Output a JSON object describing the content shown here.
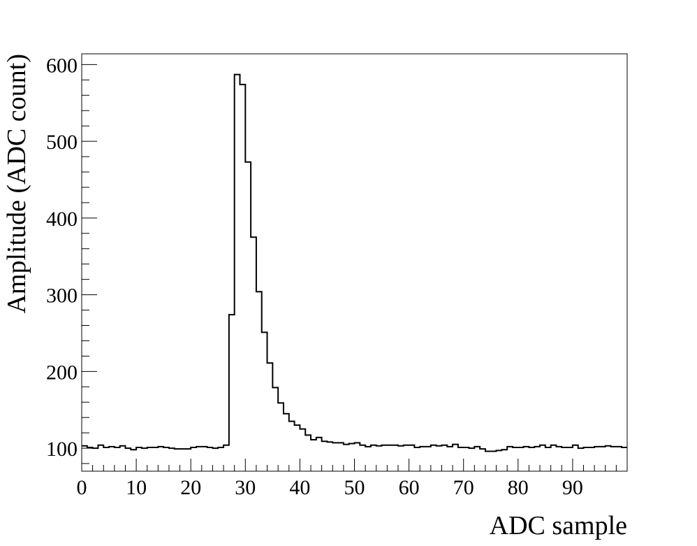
{
  "chart_data": {
    "type": "histogram",
    "xlabel": "ADC  sample",
    "ylabel": "Amplitude   (ADC count)",
    "xlim": [
      0,
      100
    ],
    "ylim": [
      70,
      614
    ],
    "xticks": [
      "0",
      "10",
      "20",
      "30",
      "40",
      "50",
      "60",
      "70",
      "80",
      "90"
    ],
    "yticks": [
      "100",
      "200",
      "300",
      "400",
      "500",
      "600"
    ],
    "grid": false,
    "legend": "none",
    "bin_width": 1,
    "values": [
      103,
      101,
      100,
      104,
      101,
      102,
      101,
      103,
      100,
      98,
      101,
      100,
      101,
      101,
      102,
      101,
      100,
      99,
      99,
      99,
      101,
      102,
      102,
      101,
      100,
      101,
      104,
      274,
      587,
      574,
      473,
      375,
      304,
      251,
      211,
      179,
      159,
      145,
      135,
      130,
      125,
      117,
      111,
      114,
      109,
      108,
      107,
      107,
      105,
      106,
      107,
      104,
      102,
      104,
      103,
      104,
      104,
      104,
      103,
      104,
      104,
      101,
      102,
      102,
      104,
      103,
      104,
      102,
      105,
      101,
      101,
      100,
      102,
      99,
      96,
      96,
      97,
      98,
      102,
      101,
      101,
      102,
      101,
      102,
      104,
      101,
      104,
      102,
      101,
      101,
      104,
      100,
      101,
      101,
      102,
      102,
      103,
      102,
      102,
      101
    ],
    "line_color": "#000000"
  }
}
